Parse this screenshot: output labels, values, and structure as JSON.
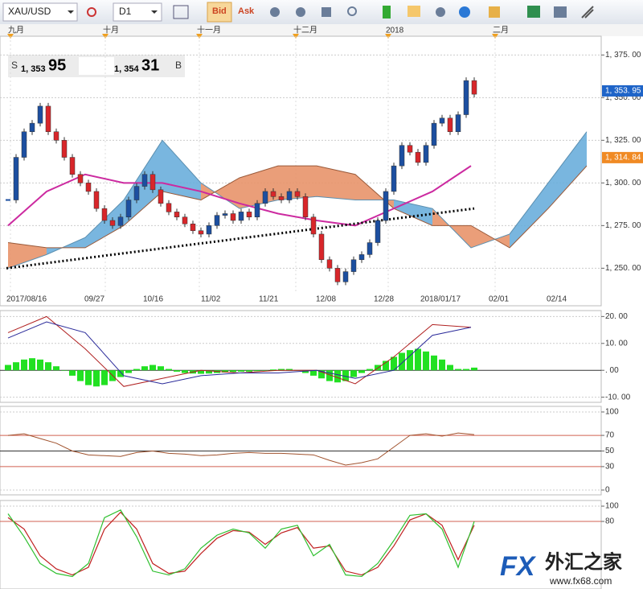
{
  "toolbar": {
    "symbol": "XAU/USD",
    "timeframe": "D1",
    "bid": "Bid",
    "ask": "Ask"
  },
  "months": [
    "九月",
    "十月",
    "十一月",
    "十二月",
    "2018",
    "二月"
  ],
  "quote": {
    "sell_label": "S",
    "sell_small": "1, 353",
    "sell_big": "95",
    "buy_small": "1, 354",
    "buy_big": "31",
    "buy_label": "B"
  },
  "price_chart": {
    "ylim": [
      1228,
      1386
    ],
    "yticks": [
      {
        "value": 1375,
        "label": "1, 375. 00"
      },
      {
        "value": 1350,
        "label": "1, 350. 00"
      },
      {
        "value": 1325,
        "label": "1, 325. 00"
      },
      {
        "value": 1300,
        "label": "1, 300. 00"
      },
      {
        "value": 1275,
        "label": "1, 275. 00"
      },
      {
        "value": 1250,
        "label": "1, 250. 00"
      }
    ],
    "current_prices": [
      {
        "value": 1353.95,
        "label": "1, 353. 95",
        "color": "#1e64c8"
      },
      {
        "value": 1314.84,
        "label": "1, 314. 84",
        "color": "#f08a24"
      }
    ],
    "dates": [
      "2017/08/16",
      "09/27",
      "10/16",
      "11/02",
      "11/21",
      "12/08",
      "12/28",
      "2018/01/17",
      "02/01",
      "02/14"
    ],
    "closes": [
      1290,
      1315,
      1330,
      1335,
      1345,
      1330,
      1325,
      1315,
      1305,
      1300,
      1295,
      1285,
      1278,
      1275,
      1280,
      1290,
      1298,
      1305,
      1296,
      1288,
      1283,
      1280,
      1276,
      1272,
      1270,
      1275,
      1281,
      1282,
      1278,
      1283,
      1280,
      1288,
      1295,
      1292,
      1290,
      1295,
      1292,
      1280,
      1270,
      1255,
      1250,
      1242,
      1248,
      1255,
      1258,
      1265,
      1278,
      1295,
      1310,
      1322,
      1318,
      1312,
      1322,
      1335,
      1338,
      1330,
      1340,
      1360,
      1352
    ],
    "span_a": [
      1250,
      1258,
      1268,
      1290,
      1325,
      1300,
      1285,
      1290,
      1292,
      1290,
      1290,
      1285,
      1262,
      1270,
      1300,
      1330
    ],
    "span_b": [
      1265,
      1262,
      1262,
      1275,
      1295,
      1290,
      1303,
      1310,
      1310,
      1305,
      1285,
      1275,
      1275,
      1262,
      1285,
      1310
    ],
    "ma": [
      1275,
      1295,
      1305,
      1300,
      1300,
      1295,
      1288,
      1282,
      1278,
      1275,
      1285,
      1295,
      1310
    ],
    "trend": [
      1250,
      1285
    ]
  },
  "macd": {
    "ylim": [
      -11.9,
      22.2
    ],
    "yticks": [
      {
        "value": 20,
        "label": "20. 00"
      },
      {
        "value": 10,
        "label": "10. 00"
      },
      {
        "value": 0,
        "label": ". 00"
      },
      {
        "value": -10,
        "label": "-10. 00"
      }
    ],
    "histogram": [
      2,
      3,
      4,
      4.5,
      4,
      3,
      1.5,
      0,
      -2,
      -4,
      -5.5,
      -6,
      -5.5,
      -4,
      -2.5,
      -1,
      0.5,
      1.5,
      2,
      1.5,
      0.5,
      -0.5,
      -1,
      -1.2,
      -1.3,
      -1.2,
      -1,
      -0.8,
      -0.6,
      -0.5,
      -0.5,
      -0.3,
      0,
      0.3,
      0.5,
      0.5,
      0,
      -1,
      -2,
      -3,
      -4,
      -4.5,
      -4,
      -2.5,
      -1,
      0.5,
      2,
      3.5,
      5,
      6.5,
      7.5,
      8,
      7,
      5.5,
      4,
      2,
      0.5,
      0.5,
      1
    ],
    "macd": [
      14,
      20,
      8,
      -6,
      -3,
      0,
      -1,
      0,
      0,
      -5,
      5,
      17,
      16
    ],
    "signal": [
      12,
      18,
      14,
      -2,
      -5,
      -2,
      -1,
      -1,
      0,
      -3,
      0,
      13,
      16
    ]
  },
  "rsi": {
    "ylim": [
      -6.2,
      107.2
    ],
    "yticks": [
      100,
      70,
      50,
      30,
      0
    ],
    "values": [
      70,
      72,
      66,
      60,
      50,
      45,
      44,
      43,
      48,
      50,
      47,
      46,
      44,
      45,
      47,
      48,
      47,
      47,
      46,
      45,
      38,
      32,
      35,
      40,
      55,
      70,
      72,
      69,
      73,
      71
    ]
  },
  "stochastic": {
    "ylim": [
      -8.4,
      107.4
    ],
    "yticks": [
      100,
      80
    ],
    "k": [
      90,
      60,
      25,
      12,
      8,
      25,
      85,
      95,
      60,
      15,
      10,
      18,
      45,
      62,
      70,
      65,
      45,
      70,
      75,
      35,
      50,
      10,
      8,
      25,
      55,
      88,
      90,
      70,
      20,
      80
    ],
    "d": [
      85,
      70,
      35,
      18,
      10,
      20,
      70,
      92,
      70,
      25,
      12,
      15,
      38,
      58,
      68,
      66,
      50,
      65,
      72,
      45,
      48,
      15,
      10,
      20,
      48,
      82,
      90,
      75,
      30,
      75
    ]
  },
  "watermark": {
    "brand": "FX",
    "name": "外汇之家",
    "url": "www.fx68.com"
  }
}
